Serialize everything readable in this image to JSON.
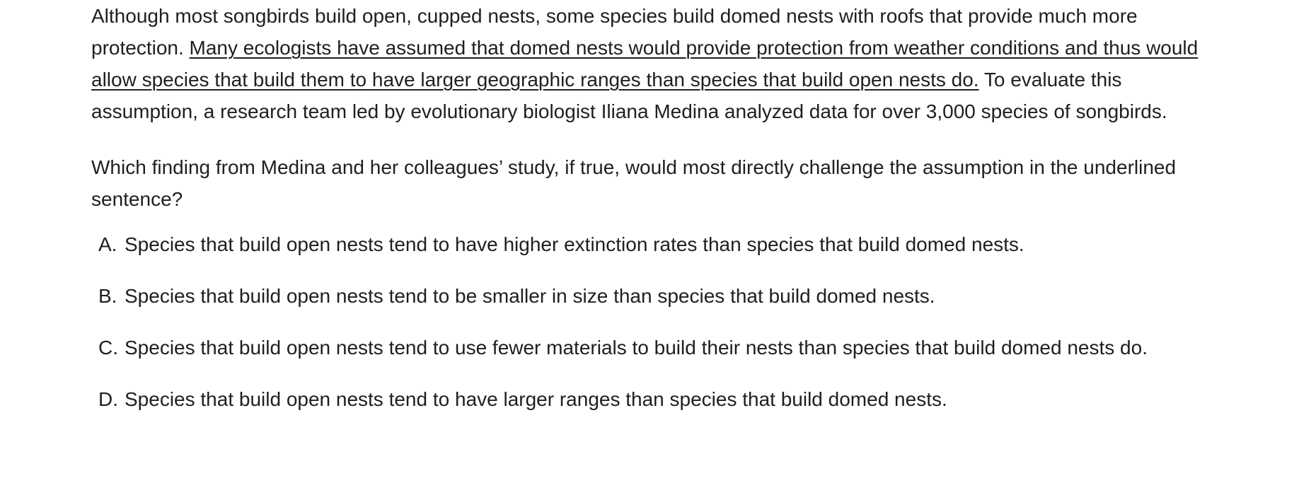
{
  "passage": {
    "before": "Although most songbirds build open, cupped nests, some species build domed nests with roofs that provide much more protection. ",
    "underlined": "Many ecologists have assumed that domed nests would provide protection from weather conditions and thus would allow species that build them to have larger geographic ranges than species that build open nests do.",
    "after": " To evaluate this assumption, a research team led by evolutionary biologist Iliana Medina analyzed data for over 3,000 species of songbirds."
  },
  "question": "Which finding from Medina and her colleagues’ study, if true, would most directly challenge the assumption in the underlined sentence?",
  "choices": [
    {
      "letter": "A.",
      "text": "Species that build open nests tend to have higher extinction rates than species that build domed nests."
    },
    {
      "letter": "B.",
      "text": "Species that build open nests tend to be smaller in size than species that build domed nests."
    },
    {
      "letter": "C.",
      "text": "Species that build open nests tend to use fewer materials to build their nests than species that build domed nests do."
    },
    {
      "letter": "D.",
      "text": "Species that build open nests tend to have larger ranges than species that build domed nests."
    }
  ]
}
